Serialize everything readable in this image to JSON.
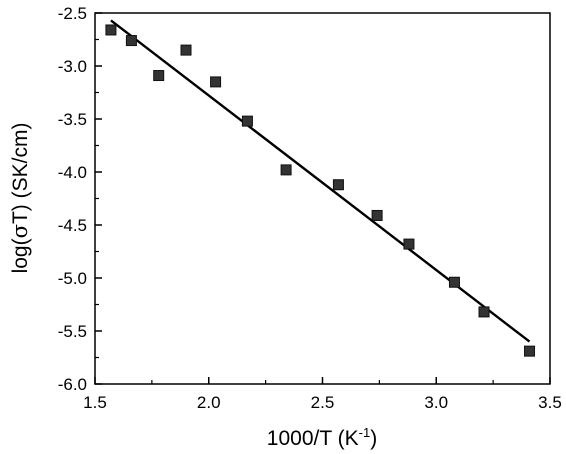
{
  "chart_data": {
    "type": "scatter",
    "xlabel_main": "1000/T (K",
    "xlabel_sup": "-1",
    "xlabel_close": ")",
    "ylabel_prefix": "log(",
    "ylabel_sigma": "σ",
    "ylabel_suffix": "T) (SK/cm)",
    "xlim": [
      1.5,
      3.5
    ],
    "ylim": [
      -6.0,
      -2.5
    ],
    "x_ticks": [
      1.5,
      2.0,
      2.5,
      3.0,
      3.5
    ],
    "x_tick_labels": [
      "1.5",
      "2.0",
      "2.5",
      "3.0",
      "3.5"
    ],
    "y_ticks": [
      -2.5,
      -3.0,
      -3.5,
      -4.0,
      -4.5,
      -5.0,
      -5.5,
      -6.0
    ],
    "y_tick_labels": [
      "-2.5",
      "-3.0",
      "-3.5",
      "-4.0",
      "-4.5",
      "-5.0",
      "-5.5",
      "-6.0"
    ],
    "grid": false,
    "series": [
      {
        "kind": "markers",
        "marker": "square",
        "color": "#333333",
        "x": [
          1.57,
          1.66,
          1.78,
          1.9,
          2.03,
          2.17,
          2.34,
          2.57,
          2.74,
          2.88,
          3.08,
          3.21,
          3.41
        ],
        "y": [
          -2.66,
          -2.76,
          -3.09,
          -2.85,
          -3.15,
          -3.52,
          -3.98,
          -4.12,
          -4.41,
          -4.68,
          -5.04,
          -5.32,
          -5.69
        ]
      },
      {
        "kind": "fit-line",
        "color": "#000000",
        "x": [
          1.57,
          3.41
        ],
        "y": [
          -2.57,
          -5.6
        ]
      }
    ]
  }
}
